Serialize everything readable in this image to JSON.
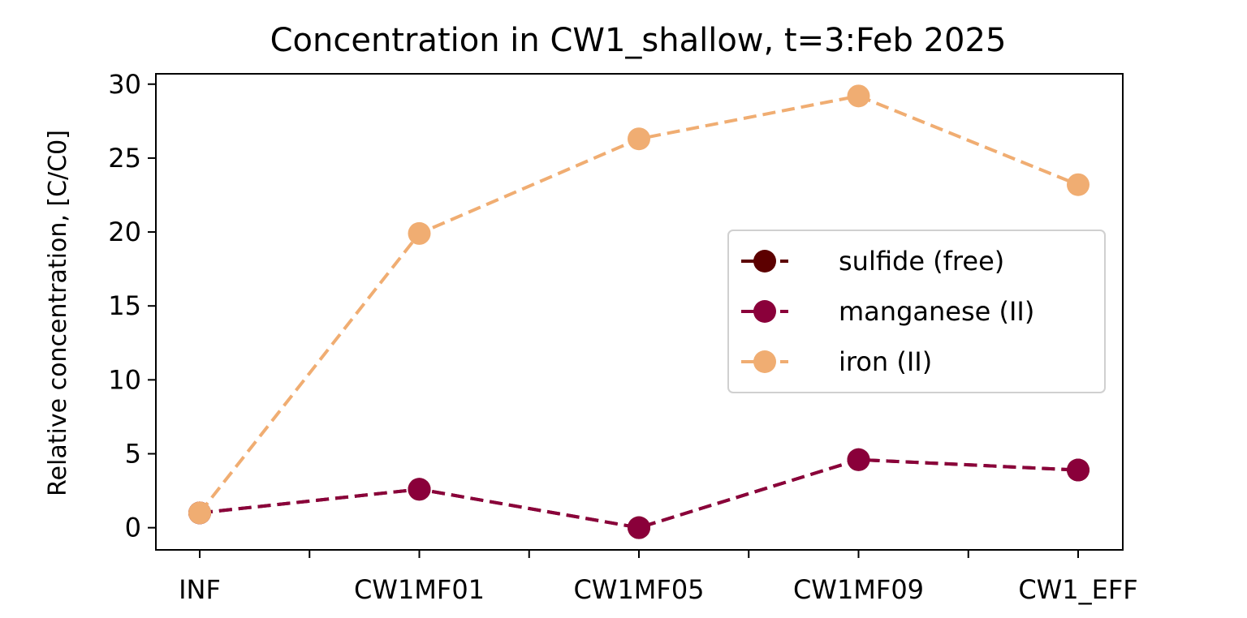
{
  "chart_data": {
    "type": "line",
    "title": "Concentration in CW1_shallow, t=3:Feb 2025",
    "xlabel": "",
    "ylabel": "Relative concentration, [C/C0]",
    "categories": [
      "INF",
      "CW1MF01",
      "CW1MF05",
      "CW1MF09",
      "CW1_EFF"
    ],
    "ylim": [
      -1.5,
      30.7
    ],
    "yticks": [
      0,
      5,
      10,
      15,
      20,
      25,
      30
    ],
    "grid": false,
    "legend_position": "center-right",
    "series": [
      {
        "name": "sulfide (free)",
        "color": "#5c0000",
        "values": [
          1.0,
          2.6,
          0.0,
          4.6,
          3.9
        ]
      },
      {
        "name": "manganese (II)",
        "color": "#8a003a",
        "values": [
          1.0,
          2.6,
          0.0,
          4.6,
          3.9
        ]
      },
      {
        "name": "iron (II)",
        "color": "#f0ad72",
        "values": [
          1.0,
          19.9,
          26.3,
          29.2,
          23.2
        ]
      }
    ]
  }
}
